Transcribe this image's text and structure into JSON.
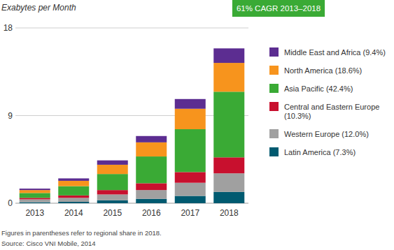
{
  "chart_data": {
    "type": "bar",
    "stacked": true,
    "grid": true,
    "legend": "right",
    "y_label": "Exabytes per Month",
    "annotations": [
      "61% CAGR 2013–2018",
      "Figures in parentheses refer to regional share in 2018.",
      "Source: Cisco VNI Mobile, 2014"
    ],
    "categories": [
      "2013",
      "2014",
      "2015",
      "2016",
      "2017",
      "2018"
    ],
    "ylim": [
      0,
      18
    ],
    "yticks": [
      0,
      9,
      18
    ],
    "series": [
      {
        "name": "Latin America (7.3%)",
        "color": "#005a70",
        "values": [
          0.1,
          0.15,
          0.3,
          0.45,
          0.75,
          1.16
        ]
      },
      {
        "name": "Western Europe (12.0%)",
        "color": "#a0a0a0",
        "values": [
          0.3,
          0.4,
          0.6,
          0.9,
          1.35,
          1.91
        ]
      },
      {
        "name": "Central and Eastern Europe (10.3%)",
        "color": "#c8102e",
        "values": [
          0.15,
          0.25,
          0.45,
          0.7,
          1.1,
          1.64
        ]
      },
      {
        "name": "Asia Pacific (42.4%)",
        "color": "#3aaa35",
        "values": [
          0.5,
          0.95,
          1.65,
          2.75,
          4.4,
          6.74
        ]
      },
      {
        "name": "North America (18.6%)",
        "color": "#f7941d",
        "values": [
          0.3,
          0.55,
          0.95,
          1.45,
          2.1,
          2.96
        ]
      },
      {
        "name": "Middle East and Africa (9.4%)",
        "color": "#5c2d91",
        "values": [
          0.15,
          0.25,
          0.45,
          0.65,
          1.0,
          1.49
        ]
      }
    ]
  }
}
